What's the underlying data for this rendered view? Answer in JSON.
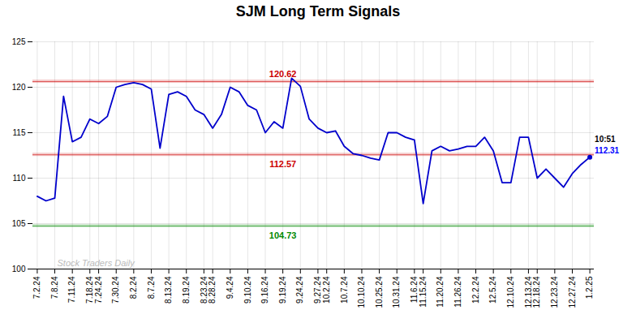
{
  "chart_data": {
    "type": "line",
    "title": "SJM Long Term Signals",
    "color": "#0000cc",
    "categories": [
      "7.2.24",
      null,
      "7.8.24",
      null,
      "7.11.24",
      null,
      "7.18.24",
      "7.24.24",
      null,
      "7.30.24",
      null,
      "8.2.24",
      null,
      "8.7.24",
      null,
      "8.13.24",
      null,
      "8.19.24",
      null,
      "8.23.24",
      "8.28.24",
      null,
      "9.4.24",
      null,
      "9.10.24",
      null,
      "9.16.24",
      null,
      "9.19.24",
      null,
      "9.24.24",
      null,
      "9.27.24",
      "10.2.24",
      null,
      "10.7.24",
      null,
      "10.10.24",
      null,
      "10.25.24",
      null,
      "10.31.24",
      null,
      "11.6.24",
      "11.15.24",
      null,
      "11.20.24",
      null,
      "11.26.24",
      null,
      "12.2.24",
      null,
      "12.5.24",
      null,
      "12.10.24",
      null,
      "12.13.24",
      "12.18.24",
      null,
      "12.23.24",
      null,
      "12.27.24",
      null,
      "1.2.25"
    ],
    "values": [
      108.0,
      107.5,
      107.8,
      119.0,
      114.0,
      114.5,
      116.5,
      116.0,
      116.8,
      120.0,
      120.3,
      120.5,
      120.3,
      119.8,
      113.3,
      119.2,
      119.5,
      119.0,
      117.5,
      117.0,
      115.5,
      117.0,
      120.0,
      119.5,
      118.0,
      117.5,
      115.0,
      116.2,
      115.5,
      121.0,
      120.1,
      116.5,
      115.5,
      115.0,
      115.2,
      113.5,
      112.7,
      112.5,
      112.2,
      112.0,
      115.0,
      115.0,
      114.5,
      114.2,
      107.2,
      113.0,
      113.5,
      113.0,
      113.2,
      113.5,
      113.5,
      114.5,
      113.0,
      109.5,
      109.5,
      114.5,
      114.5,
      110.0,
      111.0,
      110.0,
      109.0,
      110.5,
      111.5,
      112.31
    ],
    "ylim": [
      100,
      125
    ],
    "yticks": [
      100,
      105,
      110,
      115,
      120,
      125
    ],
    "grid": true,
    "reference_lines": [
      {
        "value": 120.62,
        "label": "120.62",
        "color": "#cc0000"
      },
      {
        "value": 112.57,
        "label": "112.57",
        "color": "#cc0000"
      },
      {
        "value": 104.73,
        "label": "104.73",
        "color": "#008800"
      }
    ],
    "annotations": [
      {
        "text": "10:51",
        "color": "#000000"
      },
      {
        "text": "112.31",
        "color": "#0000ff"
      }
    ],
    "watermark": "Stock Traders Daily"
  }
}
